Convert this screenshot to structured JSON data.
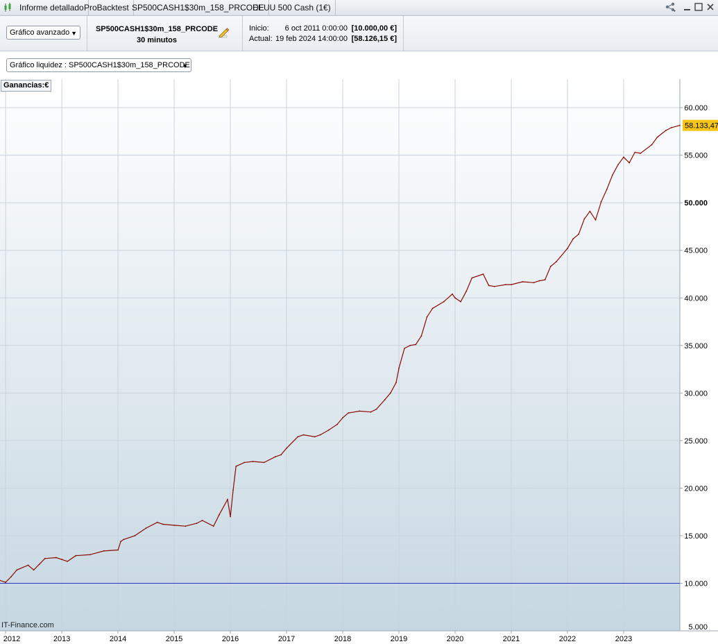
{
  "titlebar": {
    "tabs": [
      "Informe detallado",
      "ProBacktest",
      "SP500CASH1$30m_158_PRCODE",
      "EEUU 500 Cash (1€)"
    ],
    "logo_icon": "candlestick-icon",
    "controls": [
      "share-icon",
      "minimize-icon",
      "maximize-icon",
      "close-icon"
    ]
  },
  "toolbar": {
    "view_select": "Gráfico avanzado",
    "strategy_name": "SP500CASH1$30m_158_PRCODE",
    "timeframe": "30 minutos",
    "edit_icon": "pencil-icon",
    "start_label": "Inicio:",
    "start_date": "6 oct 2011 0:00:00",
    "start_value": "[10.000,00 €]",
    "current_label": "Actual:",
    "current_date": "19 feb 2024 14:00:00",
    "current_value": "[58.126,15 €]"
  },
  "chart_select": "Gráfico liquidez : SP500CASH1$30m_158_PRCODE",
  "panel_label": "Ganancias:€",
  "watermark": "IT-Finance.com",
  "colors": {
    "equity_line": "#8b0a00",
    "baseline": "#2b35c8",
    "last_badge": "#f5c518",
    "bg_top": "#ffffff",
    "bg_bottom": "#c6d7e2"
  },
  "chart_data": {
    "type": "line",
    "title": "",
    "xlabel": "",
    "ylabel": "",
    "ylim": [
      5000,
      63000
    ],
    "yticks": [
      5000,
      10000,
      15000,
      20000,
      25000,
      30000,
      35000,
      40000,
      45000,
      50000,
      55000,
      60000
    ],
    "ytick_labels": [
      "5.000",
      "10.000",
      "15.000",
      "20.000",
      "25.000",
      "30.000",
      "35.000",
      "40.000",
      "45.000",
      "50.000",
      "55.000",
      "60.000"
    ],
    "xlim": [
      2011.9,
      2024.0
    ],
    "xticks": [
      2012,
      2013,
      2014,
      2015,
      2016,
      2017,
      2018,
      2019,
      2020,
      2021,
      2022,
      2023
    ],
    "xtick_labels": [
      "2012",
      "2013",
      "2014",
      "2015",
      "2016",
      "2017",
      "2018",
      "2019",
      "2020",
      "2021",
      "2022",
      "2023"
    ],
    "grid": true,
    "baseline": 10000,
    "last_value_label": "58.133,47",
    "series": [
      {
        "x": [
          2011.9,
          2012.0,
          2012.1,
          2012.2,
          2012.4,
          2012.5,
          2012.6,
          2012.7,
          2012.9,
          2013.0,
          2013.1,
          2013.25,
          2013.5,
          2013.75,
          2014.0,
          2014.05,
          2014.1,
          2014.3,
          2014.5,
          2014.7,
          2014.8,
          2015.0,
          2015.2,
          2015.4,
          2015.5,
          2015.7,
          2015.8,
          2015.95,
          2016.0,
          2016.05,
          2016.1,
          2016.25,
          2016.4,
          2016.6,
          2016.8,
          2016.9,
          2017.0,
          2017.2,
          2017.3,
          2017.5,
          2017.6,
          2017.75,
          2017.9,
          2018.0,
          2018.1,
          2018.3,
          2018.5,
          2018.6,
          2018.75,
          2018.85,
          2018.95,
          2019.0,
          2019.1,
          2019.2,
          2019.3,
          2019.4,
          2019.5,
          2019.6,
          2019.8,
          2019.95,
          2020.0,
          2020.1,
          2020.2,
          2020.3,
          2020.5,
          2020.6,
          2020.7,
          2020.9,
          2021.0,
          2021.2,
          2021.4,
          2021.5,
          2021.6,
          2021.7,
          2021.8,
          2022.0,
          2022.1,
          2022.2,
          2022.3,
          2022.4,
          2022.5,
          2022.6,
          2022.7,
          2022.8,
          2022.9,
          2023.0,
          2023.1,
          2023.2,
          2023.3,
          2023.5,
          2023.6,
          2023.75,
          2023.85,
          2024.0
        ],
        "y": [
          10300,
          10100,
          10700,
          11400,
          11900,
          11400,
          12000,
          12600,
          12700,
          12500,
          12300,
          12900,
          13000,
          13400,
          13500,
          14400,
          14600,
          15000,
          15800,
          16400,
          16200,
          16100,
          16000,
          16300,
          16600,
          16000,
          17200,
          18800,
          17000,
          19800,
          22300,
          22700,
          22800,
          22700,
          23300,
          23500,
          24200,
          25400,
          25600,
          25400,
          25600,
          26100,
          26700,
          27400,
          27900,
          28100,
          28000,
          28300,
          29300,
          30000,
          31100,
          32600,
          34700,
          35000,
          35100,
          36000,
          38000,
          38900,
          39600,
          40400,
          40000,
          39600,
          40700,
          42100,
          42500,
          41300,
          41200,
          41400,
          41400,
          41700,
          41600,
          41800,
          41900,
          43300,
          43800,
          45200,
          46200,
          46700,
          48300,
          49100,
          48200,
          50100,
          51400,
          52900,
          54000,
          54800,
          54200,
          55300,
          55200,
          56100,
          56900,
          57600,
          57900,
          58133
        ]
      }
    ]
  }
}
